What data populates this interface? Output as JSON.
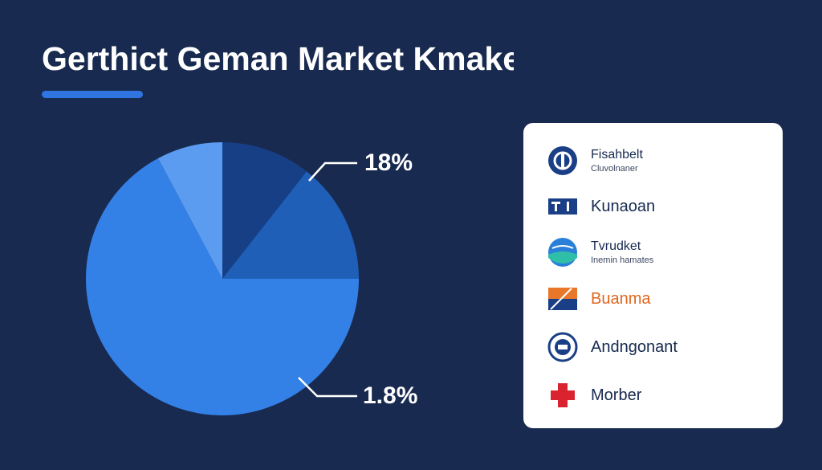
{
  "chart_data": {
    "type": "pie",
    "title": "Gerthict Geman Market Kmakes",
    "categories": [
      null,
      null,
      null,
      null
    ],
    "values": [
      10.6,
      14.4,
      67.2,
      7.8
    ],
    "colors": [
      "#163f86",
      "#1f5fb8",
      "#3381e6",
      "#5b9bf0"
    ],
    "annotations": [
      "18%",
      "1.8%"
    ]
  },
  "legend_items": [
    {
      "name": "Fisahbelt",
      "subtitle": "Cluvolnaner"
    },
    {
      "name": "Kunaoan"
    },
    {
      "name": "Tvrudket",
      "subtitle": "Inemin hamates"
    },
    {
      "name": "Buanma"
    },
    {
      "name": "Andngonant"
    },
    {
      "name": "Morber"
    }
  ]
}
